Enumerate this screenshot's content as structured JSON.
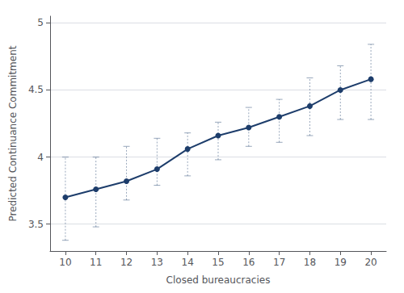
{
  "chart_data": {
    "type": "line",
    "x": [
      10,
      11,
      12,
      13,
      14,
      15,
      16,
      17,
      18,
      19,
      20
    ],
    "values": [
      3.7,
      3.76,
      3.82,
      3.91,
      4.06,
      4.16,
      4.22,
      4.3,
      4.38,
      4.5,
      4.58
    ],
    "ci_lower": [
      3.38,
      3.48,
      3.68,
      3.79,
      3.86,
      3.98,
      4.08,
      4.11,
      4.16,
      4.28,
      4.28
    ],
    "ci_upper": [
      4.0,
      4.0,
      4.08,
      4.14,
      4.18,
      4.26,
      4.37,
      4.43,
      4.59,
      4.68,
      4.84
    ],
    "xlabel": "Closed bureaucracies",
    "ylabel": "Predicted Continuance Commitment",
    "xlim": [
      9.5,
      20.5
    ],
    "xticks": [
      10,
      11,
      12,
      13,
      14,
      15,
      16,
      17,
      18,
      19,
      20
    ],
    "ylim": [
      3.3,
      5.05
    ],
    "yticks": [
      3.5,
      4,
      4.5,
      5
    ],
    "color": "#1d3d6b",
    "marker": "circle",
    "grid": true
  }
}
